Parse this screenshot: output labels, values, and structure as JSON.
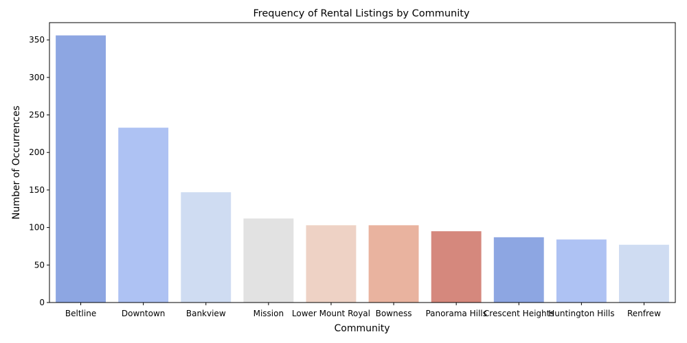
{
  "chart_data": {
    "type": "bar",
    "title": "Frequency of Rental Listings by Community",
    "xlabel": "Community",
    "ylabel": "Number of Occurrences",
    "categories": [
      "Beltline",
      "Downtown",
      "Bankview",
      "Mission",
      "Lower Mount Royal",
      "Bowness",
      "Panorama Hills",
      "Crescent Heights",
      "Huntington Hills",
      "Renfrew"
    ],
    "values": [
      356,
      233,
      147,
      112,
      103,
      103,
      95,
      87,
      84,
      77
    ],
    "colors": [
      "#8da6e2",
      "#aec2f3",
      "#cfdcf2",
      "#e2e2e2",
      "#eed2c5",
      "#e9b39f",
      "#d5887d",
      "#8da6e2",
      "#aec2f3",
      "#cfdcf2"
    ],
    "ylim": [
      0,
      373
    ],
    "yticks": [
      0,
      50,
      100,
      150,
      200,
      250,
      300,
      350
    ],
    "grid": false,
    "legend": "none"
  }
}
